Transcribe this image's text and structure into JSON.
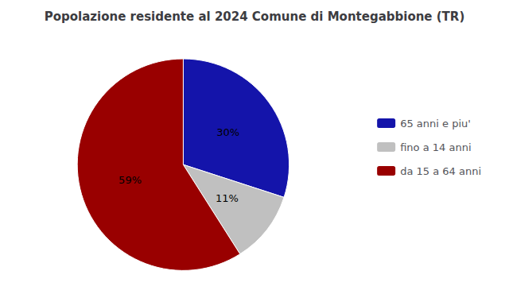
{
  "chart_data": {
    "type": "pie",
    "title": "Popolazione residente al 2024 Comune di Montegabbione (TR)",
    "categories": [
      "65 anni e piu'",
      "fino a 14 anni",
      "da 15 a 64 anni"
    ],
    "values": [
      30,
      11,
      59
    ],
    "value_labels": [
      "30%",
      "11%",
      "59%"
    ],
    "colors": [
      "#1414aa",
      "#c0c0c0",
      "#990000"
    ],
    "data_labels": true,
    "legend": "right"
  }
}
